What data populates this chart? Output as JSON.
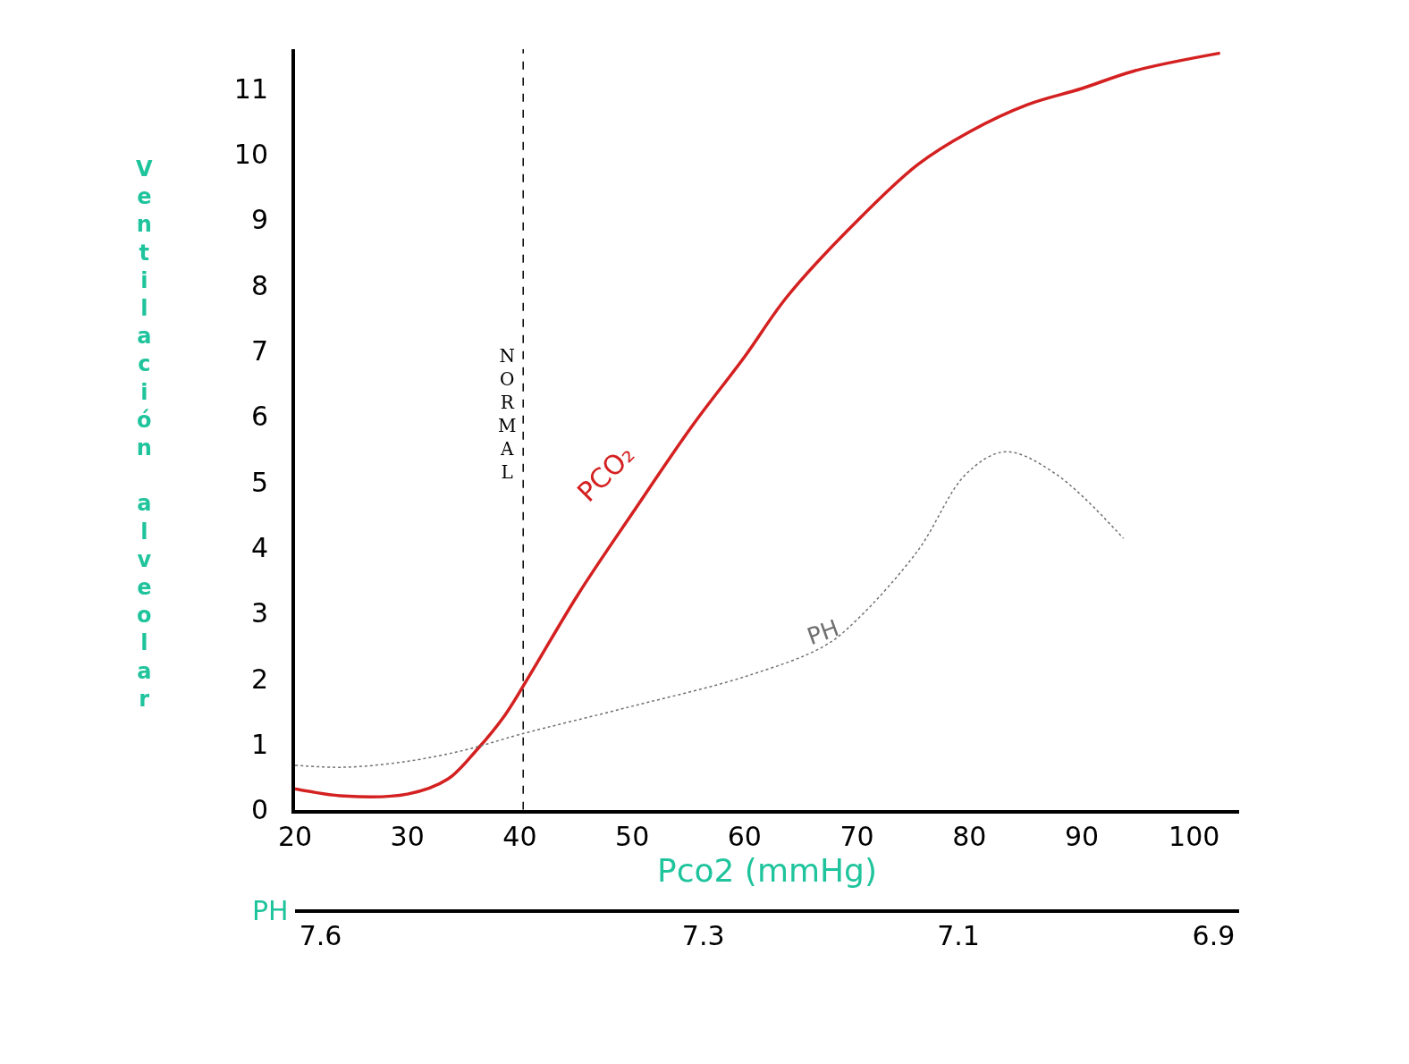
{
  "chart_data": {
    "type": "line",
    "xlabel": "Pco2 (mmHg)",
    "ylabel": "Ventilación alveolar",
    "x2label": "PH",
    "xlim": [
      20,
      104
    ],
    "xticks": [
      20,
      30,
      40,
      50,
      60,
      70,
      80,
      90,
      100
    ],
    "ylim": [
      0,
      11.6
    ],
    "yticks": [
      0,
      1,
      2,
      3,
      4,
      5,
      6,
      7,
      8,
      9,
      10,
      11
    ],
    "x2lim": [
      7.62,
      6.88
    ],
    "x2ticks": [
      7.6,
      7.3,
      7.1,
      6.9
    ],
    "legend": false,
    "marker": "none",
    "ref_lines": [
      {
        "axis": "x",
        "value": 40.3,
        "label": "NORMAL",
        "color": "#000000",
        "line_style": "dashed"
      }
    ],
    "series": [
      {
        "name": "PCO₂",
        "color": "#d42020",
        "line_style": "solid",
        "x": [
          20,
          24.4,
          30,
          33.6,
          36.2,
          38.7,
          40.8,
          45.2,
          50,
          55.4,
          60,
          63.8,
          70,
          75.4,
          80,
          85.1,
          90,
          94.7,
          102.3
        ],
        "values": [
          0.32,
          0.21,
          0.24,
          0.47,
          0.92,
          1.45,
          2.03,
          3.29,
          4.52,
          5.87,
          6.91,
          7.83,
          8.98,
          9.84,
          10.34,
          10.75,
          11.0,
          11.27,
          11.54
        ]
      },
      {
        "name": "PH",
        "color": "#707070",
        "line_style": "dotted",
        "x": [
          20,
          24.4,
          30,
          35.3,
          40,
          50,
          60,
          67,
          70,
          75.4,
          79.7,
          83.2,
          87.7,
          93.7
        ],
        "values": [
          0.68,
          0.65,
          0.74,
          0.92,
          1.15,
          1.58,
          2.03,
          2.49,
          2.9,
          3.95,
          5.12,
          5.46,
          5.12,
          4.14
        ]
      }
    ]
  }
}
